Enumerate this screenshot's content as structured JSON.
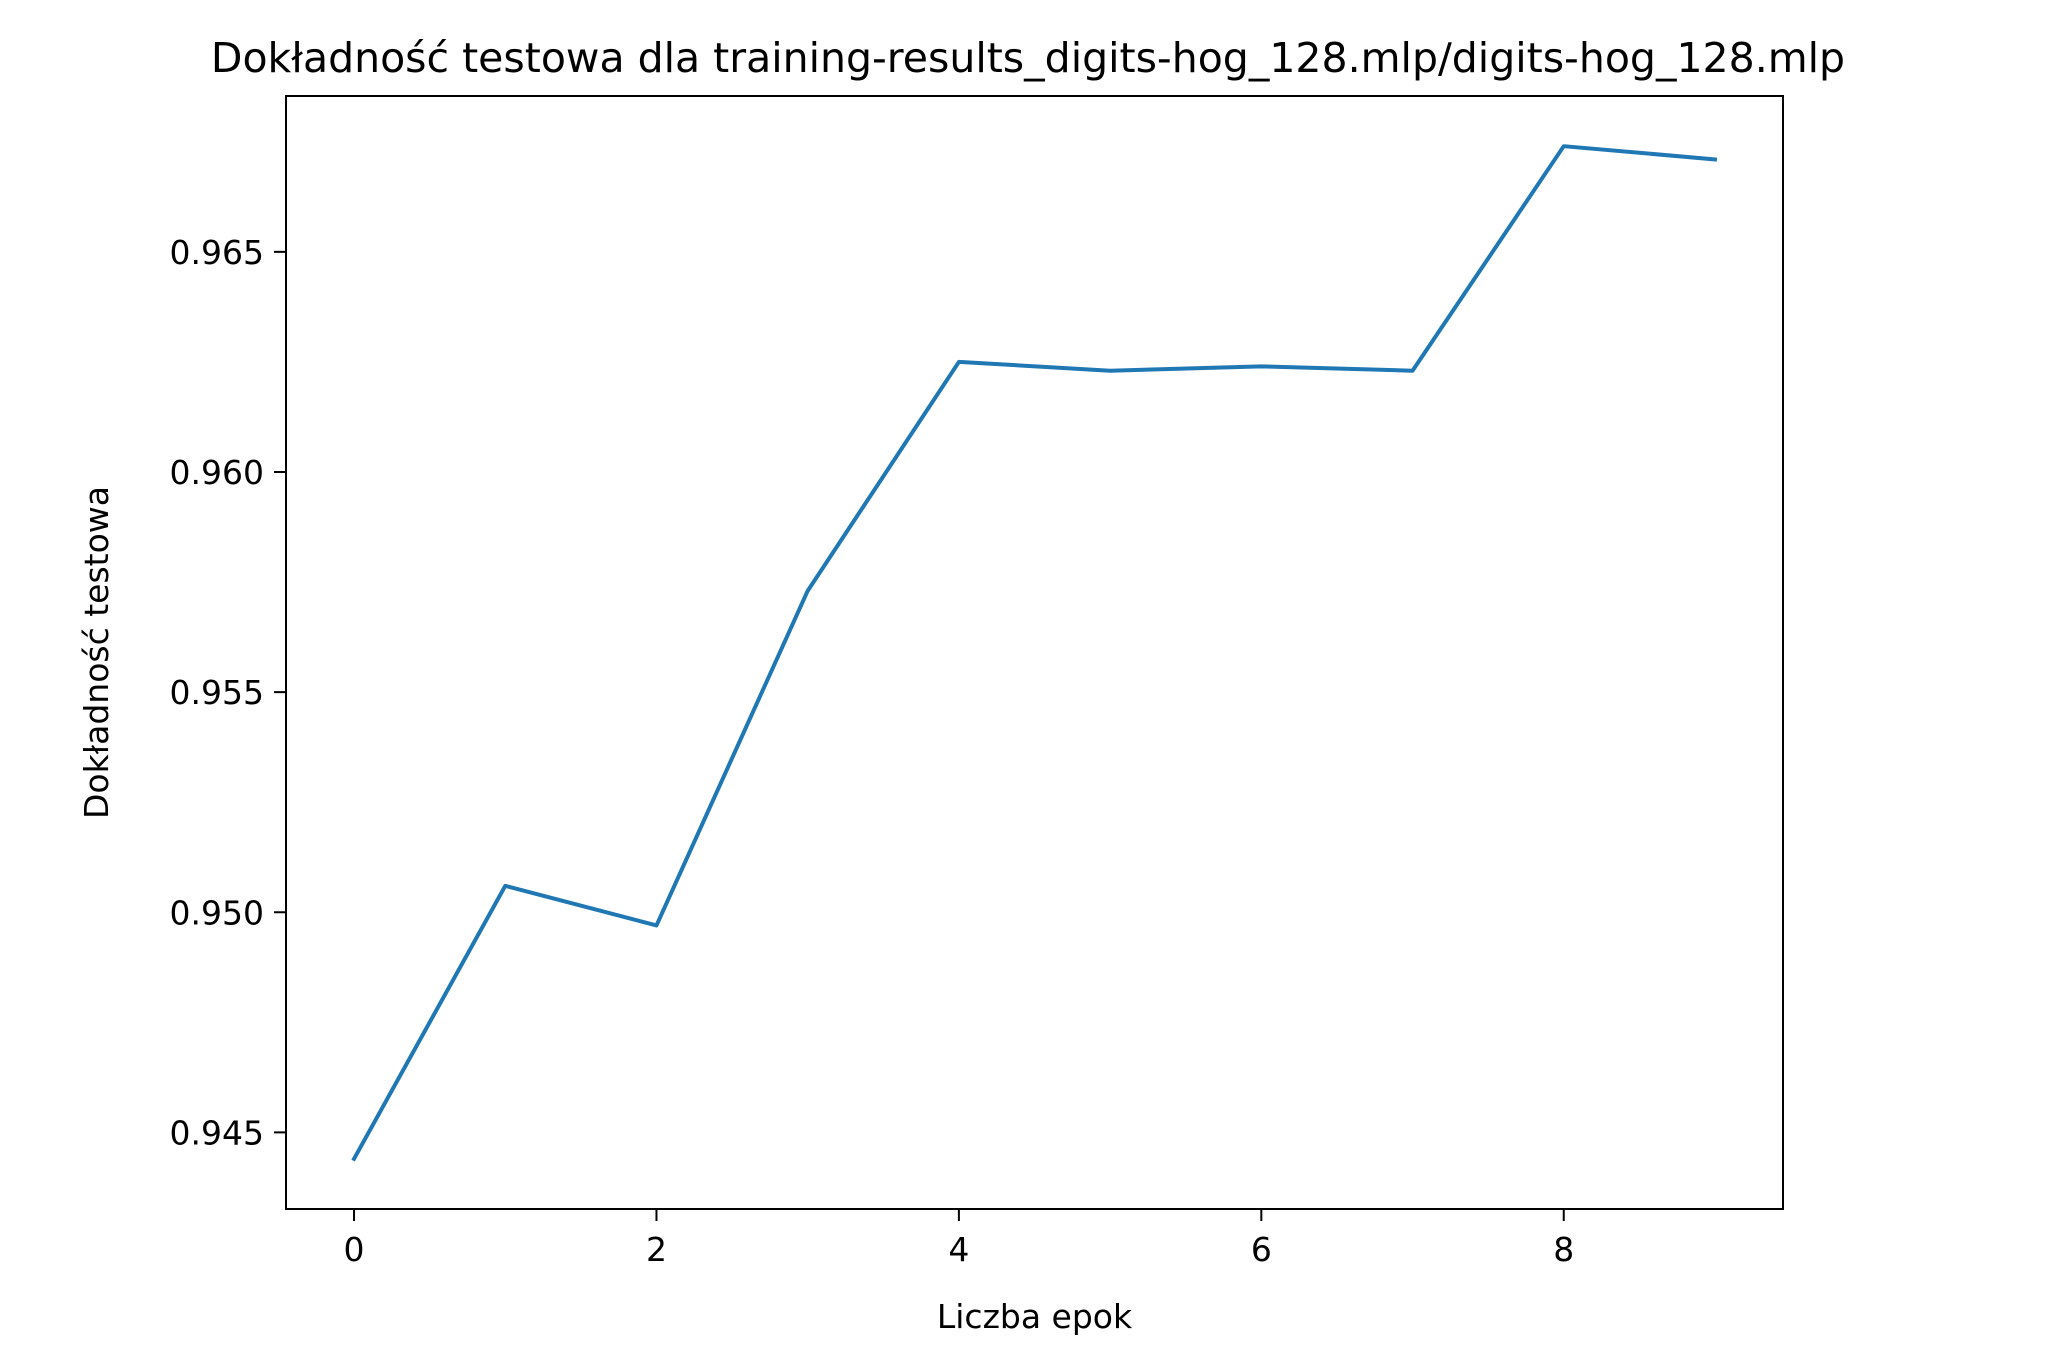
{
  "chart_data": {
    "type": "line",
    "title": "Dokładność testowa dla training-results_digits-hog_128.mlp/digits-hog_128.mlp",
    "xlabel": "Liczba epok",
    "ylabel": "Dokładność testowa",
    "x": [
      0,
      1,
      2,
      3,
      4,
      5,
      6,
      7,
      8,
      9
    ],
    "series": [
      {
        "values": [
          0.9444,
          0.9506,
          0.9497,
          0.9573,
          0.9625,
          0.9623,
          0.9624,
          0.9623,
          0.9674,
          0.9671
        ],
        "color": "#1f77b4"
      }
    ],
    "xlim": [
      -0.45,
      9.45
    ],
    "ylim": [
      0.94326,
      0.96854
    ],
    "xticks": [
      0,
      2,
      4,
      6,
      8
    ],
    "xtick_labels": [
      "0",
      "2",
      "4",
      "6",
      "8"
    ],
    "yticks": [
      0.945,
      0.95,
      0.955,
      0.96,
      0.965
    ],
    "ytick_labels": [
      "0.945",
      "0.950",
      "0.955",
      "0.960",
      "0.965"
    ],
    "grid": false,
    "legend": "none"
  }
}
